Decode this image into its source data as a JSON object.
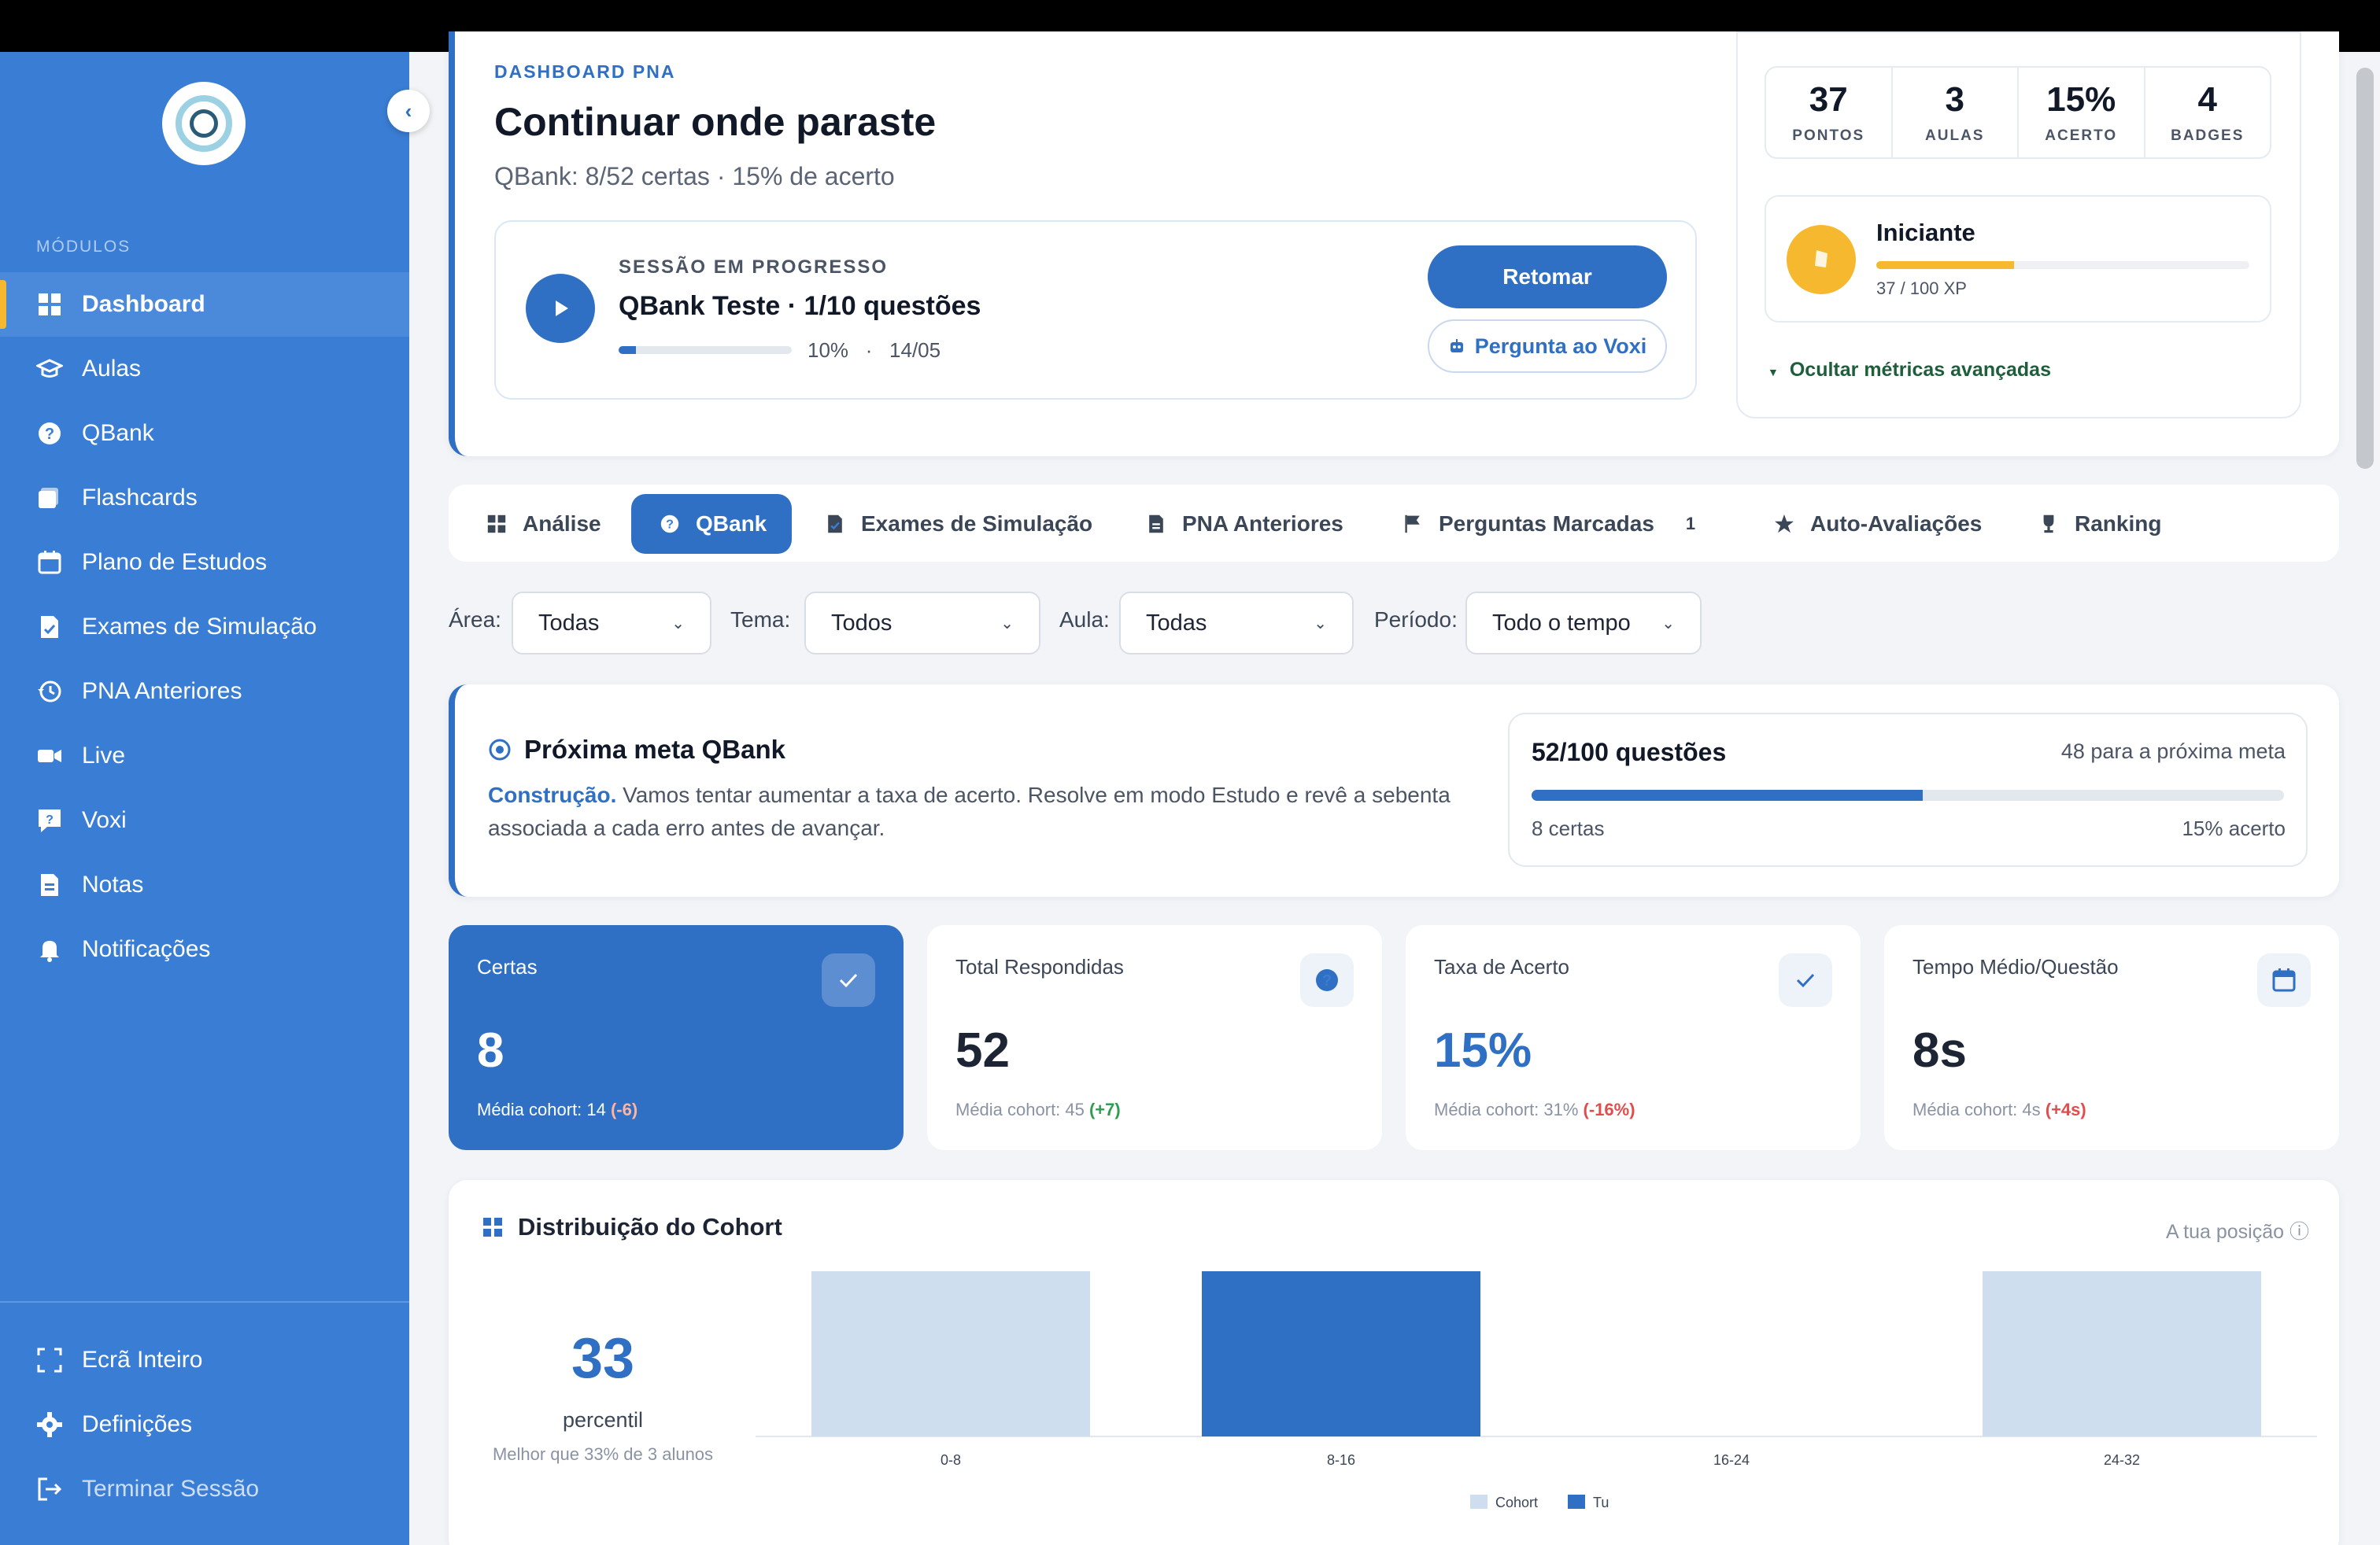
{
  "sidebar": {
    "section_label": "MÓDULOS",
    "items": [
      {
        "label": "Dashboard",
        "icon": "grid-icon",
        "active": true
      },
      {
        "label": "Aulas",
        "icon": "graduation-cap-icon"
      },
      {
        "label": "QBank",
        "icon": "question-circle-icon"
      },
      {
        "label": "Flashcards",
        "icon": "cards-icon"
      },
      {
        "label": "Plano de Estudos",
        "icon": "calendar-icon"
      },
      {
        "label": "Exames de Simulação",
        "icon": "exam-doc-icon"
      },
      {
        "label": "PNA Anteriores",
        "icon": "history-icon"
      },
      {
        "label": "Live",
        "icon": "video-icon"
      },
      {
        "label": "Voxi",
        "icon": "chat-question-icon"
      },
      {
        "label": "Notas",
        "icon": "note-icon"
      },
      {
        "label": "Notificações",
        "icon": "bell-icon"
      }
    ],
    "bottom": [
      {
        "label": "Ecrã Inteiro",
        "icon": "fullscreen-icon"
      },
      {
        "label": "Definições",
        "icon": "gear-icon"
      },
      {
        "label": "Terminar Sessão",
        "icon": "logout-icon"
      }
    ]
  },
  "hero": {
    "kicker": "DASHBOARD PNA",
    "title": "Continuar onde paraste",
    "subtitle": "QBank: 8/52 certas · 15% de acerto",
    "session": {
      "kicker": "SESSÃO EM PROGRESSO",
      "title": "QBank Teste · 1/10 questões",
      "progress": 0.1,
      "meta": "10%   ·   14/05",
      "resume_label": "Retomar",
      "ask_label": "Pergunta ao Voxi"
    }
  },
  "stats": [
    {
      "value": "37",
      "label": "PONTOS"
    },
    {
      "value": "3",
      "label": "AULAS"
    },
    {
      "value": "15%",
      "label": "ACERTO"
    },
    {
      "value": "4",
      "label": "BADGES"
    }
  ],
  "level": {
    "name": "Iniciante",
    "xp_text": "37 / 100 XP",
    "progress": 0.37
  },
  "advanced_toggle": "Ocultar métricas avançadas",
  "tabs": [
    {
      "label": "Análise",
      "icon": "grid-icon"
    },
    {
      "label": "QBank",
      "icon": "question-circle-icon",
      "active": true
    },
    {
      "label": "Exames de Simulação",
      "icon": "exam-doc-icon"
    },
    {
      "label": "PNA Anteriores",
      "icon": "doc-icon"
    },
    {
      "label": "Perguntas Marcadas",
      "icon": "flag-icon",
      "count": "1"
    },
    {
      "label": "Auto-Avaliações",
      "icon": "star-icon"
    },
    {
      "label": "Ranking",
      "icon": "trophy-icon"
    }
  ],
  "filters": [
    {
      "label": "Área:",
      "value": "Todas"
    },
    {
      "label": "Tema:",
      "value": "Todos"
    },
    {
      "label": "Aula:",
      "value": "Todas"
    },
    {
      "label": "Período:",
      "value": "Todo o tempo"
    }
  ],
  "goal": {
    "title": "Próxima meta QBank",
    "lead": "Construção.",
    "text": " Vamos tentar aumentar a taxa de acerto. Resolve em modo Estudo e revê a sebenta associada a cada erro antes de avançar.",
    "box_title": "52/100 questões",
    "box_right": "48 para a próxima meta",
    "progress": 0.52,
    "left_caption": "8 certas",
    "right_caption": "15% acerto"
  },
  "kpis": [
    {
      "title": "Certas",
      "value": "8",
      "cohort": "Média cohort: 14 ",
      "delta": "(-6)",
      "delta_type": "neg",
      "icon": "check-icon"
    },
    {
      "title": "Total Respondidas",
      "value": "52",
      "cohort": "Média cohort: 45 ",
      "delta": "(+7)",
      "delta_type": "pos",
      "icon": "question-circle-icon"
    },
    {
      "title": "Taxa de Acerto",
      "value": "15%",
      "cohort": "Média cohort: 31% ",
      "delta": "(-16%)",
      "delta_type": "neg",
      "icon": "check-icon"
    },
    {
      "title": "Tempo Médio/Questão",
      "value": "8s",
      "cohort": "Média cohort: 4s ",
      "delta": "(+4s)",
      "delta_type": "neg",
      "icon": "calendar-icon"
    }
  ],
  "cohort": {
    "title": "Distribuição do Cohort",
    "right_label": "A tua posição ⓘ",
    "percentile": "33",
    "percentile_label": "percentil",
    "percentile_sub": "Melhor que 33% de 3 alunos"
  },
  "colors": {
    "primary": "#2f6fc4",
    "sidebar": "#3a7dd4",
    "accent": "#f5b82e",
    "cohort_bar": "#cfdeef",
    "negative": "#e24c4c",
    "positive": "#2e9d4f"
  },
  "chart_data": {
    "type": "bar",
    "categories": [
      "0-8",
      "8-16",
      "16-24",
      "24-32"
    ],
    "series": [
      {
        "name": "Cohort",
        "values": [
          1,
          0,
          0,
          1
        ],
        "color": "#cfdeef"
      },
      {
        "name": "Tu",
        "values": [
          0,
          1,
          0,
          0
        ],
        "color": "#2f6fc4"
      }
    ],
    "ylim": [
      0,
      1
    ],
    "legend": "bottom",
    "grid": false
  }
}
